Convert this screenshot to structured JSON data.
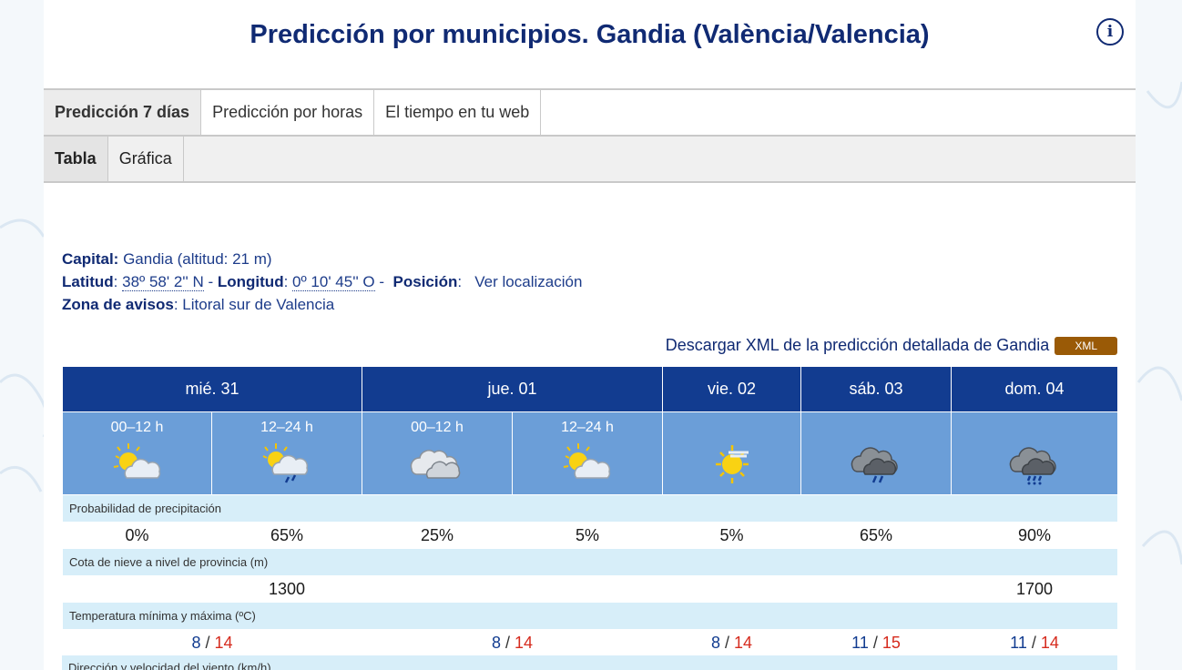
{
  "title": "Predicción por municipios. Gandia (València/Valencia)",
  "info_icon": "info-icon",
  "tabs_main": [
    "Predicción 7 días",
    "Predicción por horas",
    "El tiempo en tu web"
  ],
  "tabs_sub": [
    "Tabla",
    "Gráfica"
  ],
  "info": {
    "capital_label": "Capital:",
    "capital_value": "Gandia (altitud: 21 m)",
    "latitud_label": "Latitud",
    "latitud_value": "38º 58' 2'' N",
    "longitud_label": "Longitud",
    "longitud_value": "0º 10' 45'' O",
    "posicion_label": "Posición",
    "posicion_link": "Ver localización",
    "zona_label": "Zona de avisos",
    "zona_value": "Litoral sur de Valencia"
  },
  "xml": {
    "link_text": "Descargar XML de la predicción detallada de Gandia",
    "badge": "XML"
  },
  "days": [
    "mié. 31",
    "jue. 01",
    "vie. 02",
    "sáb. 03",
    "dom. 04"
  ],
  "periods": [
    "00–12 h",
    "12–24 h",
    "00–12 h",
    "12–24 h",
    "",
    "",
    ""
  ],
  "weather_icons": [
    "sun-cloud-icon",
    "sun-cloud-rain-icon",
    "cloud-icon",
    "sun-cloud-icon",
    "sun-haze-icon",
    "storm-cloud-rain-icon",
    "storm-cloud-heavy-rain-icon"
  ],
  "rows": {
    "precip_label": "Probabilidad de precipitación",
    "precip": [
      "0%",
      "65%",
      "25%",
      "5%",
      "5%",
      "65%",
      "90%"
    ],
    "snow_label": "Cota de nieve a nivel de provincia (m)",
    "snow": [
      "",
      "1300",
      "",
      "",
      "",
      "",
      "1700"
    ],
    "temp_label": "Temperatura mínima y máxima (ºC)",
    "temp": [
      {
        "min": "8",
        "max": "14"
      },
      {
        "min": "8",
        "max": "14"
      },
      {
        "min": "8",
        "max": "14"
      },
      {
        "min": "11",
        "max": "15"
      },
      {
        "min": "11",
        "max": "14"
      }
    ],
    "wind_label": "Dirección y velocidad del viento (km/h)"
  },
  "colors": {
    "header_blue": "#123c90",
    "icon_row_blue": "#6b9ed8",
    "label_row": "#d7eef9",
    "min_temp": "#123c90",
    "max_temp": "#d62b1e",
    "xml_badge": "#9a5a06"
  }
}
